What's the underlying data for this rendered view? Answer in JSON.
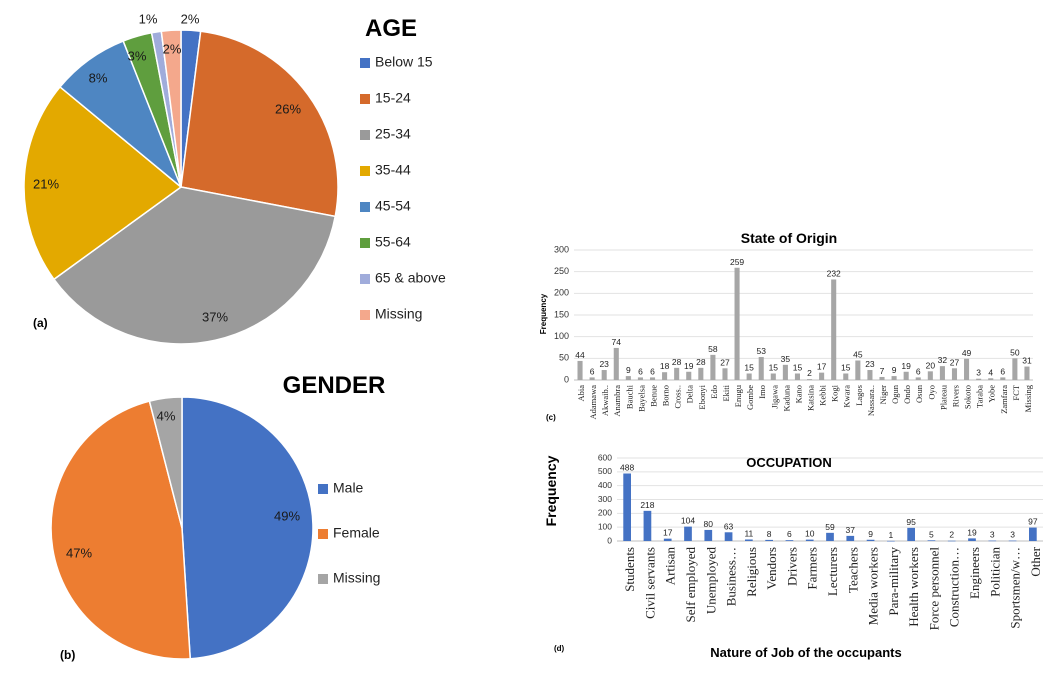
{
  "chart_data": [
    {
      "type": "pie",
      "panel_label": "(a)",
      "title": "AGE",
      "legend_position": "right",
      "slices": [
        {
          "label": "Below 15",
          "value": 2,
          "value_label": "2%",
          "color": "#4472C4"
        },
        {
          "label": "15-24",
          "value": 26,
          "value_label": "26%",
          "color": "#D56A2B"
        },
        {
          "label": "25-34",
          "value": 37,
          "value_label": "37%",
          "color": "#9A9A9A"
        },
        {
          "label": "35-44",
          "value": 21,
          "value_label": "21%",
          "color": "#E3A900"
        },
        {
          "label": "45-54",
          "value": 8,
          "value_label": "8%",
          "color": "#4E86C2"
        },
        {
          "label": "55-64",
          "value": 3,
          "value_label": "3%",
          "color": "#5F9E3E"
        },
        {
          "label": "65 & above",
          "value": 1,
          "value_label": "1%",
          "color": "#A0ACDB"
        },
        {
          "label": "Missing",
          "value": 2,
          "value_label": "2%",
          "color": "#F4A88C"
        }
      ]
    },
    {
      "type": "pie",
      "panel_label": "(b)",
      "title": "GENDER",
      "legend_position": "right",
      "slices": [
        {
          "label": "Male",
          "value": 49,
          "value_label": "49%",
          "color": "#4472C4"
        },
        {
          "label": "Female",
          "value": 47,
          "value_label": "47%",
          "color": "#ED7D31"
        },
        {
          "label": "Missing",
          "value": 4,
          "value_label": "4%",
          "color": "#A5A5A5"
        }
      ]
    },
    {
      "type": "bar",
      "panel_label": "(c)",
      "title": "State of Origin",
      "ylabel": "Frequency",
      "xlabel": "",
      "ylim": [
        0,
        300
      ],
      "yticks": [
        0,
        50,
        100,
        150,
        200,
        250,
        300
      ],
      "grid": true,
      "color": "#A6A6A6",
      "categories": [
        "Abia",
        "Adamawa",
        "Akwaib..",
        "Anambra",
        "Bauchi",
        "Bayelsa",
        "Benue",
        "Borno",
        "Cross..",
        "Delta",
        "Ebonyi",
        "Edo",
        "Ekiti",
        "Enugu",
        "Gombe",
        "Imo",
        "Jigawa",
        "Kaduna",
        "Kano",
        "Katsina",
        "Kebbi",
        "Kogi",
        "Kwara",
        "Lagos",
        "Nassara..",
        "Niger",
        "Ogun",
        "Ondo",
        "Osun",
        "Oyo",
        "Plateau",
        "Rivers",
        "Sokoto",
        "Taraba",
        "Yobe",
        "Zamfara",
        "FCT",
        "Missing"
      ],
      "values": [
        44,
        6,
        23,
        74,
        9,
        6,
        6,
        18,
        28,
        19,
        28,
        58,
        27,
        259,
        15,
        53,
        15,
        35,
        15,
        2,
        17,
        232,
        15,
        45,
        23,
        7,
        9,
        19,
        6,
        20,
        32,
        27,
        49,
        3,
        4,
        6,
        50,
        31
      ]
    },
    {
      "type": "bar",
      "panel_label": "(d)",
      "title": "OCCUPATION",
      "ylabel": "Frequency",
      "xlabel": "Nature of Job of the occupants",
      "ylim": [
        0,
        600
      ],
      "yticks": [
        0,
        100,
        200,
        300,
        400,
        500,
        600
      ],
      "grid": true,
      "color": "#4472C4",
      "categories": [
        "Students",
        "Civil servants",
        "Artisan",
        "Self employed",
        "Unemployed",
        "Business…",
        "Religious",
        "Vendors",
        "Drivers",
        "Farmers",
        "Lecturers",
        "Teachers",
        "Media workers",
        "Para-military",
        "Health workers",
        "Force personnel",
        "Construction…",
        "Engineers",
        "Politician",
        "Sportsmen/w…",
        "Other"
      ],
      "values": [
        488,
        218,
        17,
        104,
        80,
        63,
        11,
        8,
        6,
        10,
        59,
        37,
        9,
        1,
        95,
        5,
        2,
        19,
        3,
        3,
        97
      ]
    }
  ]
}
